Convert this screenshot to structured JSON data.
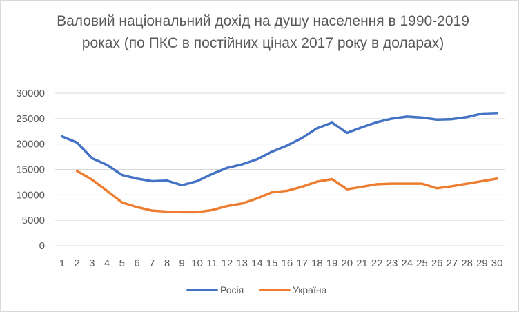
{
  "chart_data": {
    "type": "line",
    "title": "Валовий національний дохід на душу населення  в 1990-2019 роках (по ПКС в постійних цінах 2017 року в доларах)",
    "xlabel": "",
    "ylabel": "",
    "x": [
      "1",
      "2",
      "3",
      "4",
      "5",
      "6",
      "7",
      "8",
      "9",
      "10",
      "11",
      "12",
      "13",
      "14",
      "15",
      "16",
      "17",
      "18",
      "19",
      "20",
      "21",
      "22",
      "23",
      "24",
      "25",
      "26",
      "27",
      "28",
      "29",
      "30"
    ],
    "ylim": [
      0,
      30000
    ],
    "yticks": [
      0,
      5000,
      10000,
      15000,
      20000,
      25000,
      30000
    ],
    "grid": true,
    "legend": "bottom",
    "series": [
      {
        "name": "Росія",
        "color": "#4472C4",
        "values": [
          21500,
          20300,
          17200,
          15900,
          13900,
          13200,
          12700,
          12800,
          11900,
          12700,
          14100,
          15300,
          16000,
          17000,
          18500,
          19700,
          21200,
          23100,
          24200,
          22200,
          23300,
          24300,
          25000,
          25400,
          25200,
          24800,
          24900,
          25300,
          26000,
          26100
        ]
      },
      {
        "name": "Україна",
        "color": "#ED7D31",
        "values": [
          null,
          14700,
          13000,
          10800,
          8500,
          7600,
          6900,
          6700,
          6600,
          6600,
          7000,
          7800,
          8300,
          9300,
          10500,
          10800,
          11600,
          12600,
          13100,
          11100,
          11600,
          12100,
          12200,
          12200,
          12200,
          11300,
          11700,
          12200,
          12700,
          13200
        ]
      }
    ]
  }
}
